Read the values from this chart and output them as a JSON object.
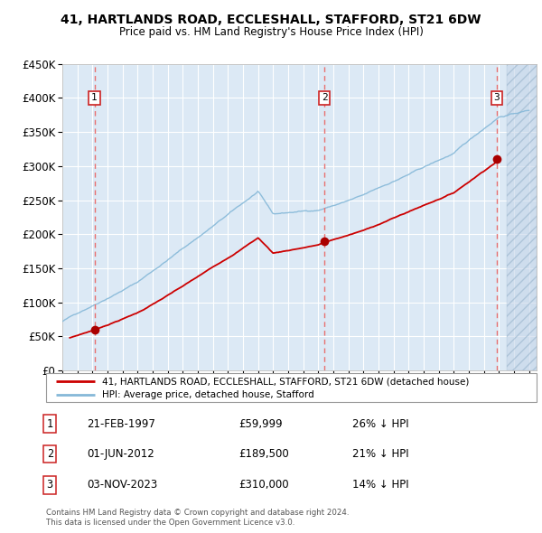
{
  "title": "41, HARTLANDS ROAD, ECCLESHALL, STAFFORD, ST21 6DW",
  "subtitle": "Price paid vs. HM Land Registry's House Price Index (HPI)",
  "footer1": "Contains HM Land Registry data © Crown copyright and database right 2024.",
  "footer2": "This data is licensed under the Open Government Licence v3.0.",
  "legend_line1": "41, HARTLANDS ROAD, ECCLESHALL, STAFFORD, ST21 6DW (detached house)",
  "legend_line2": "HPI: Average price, detached house, Stafford",
  "sales": [
    {
      "num": 1,
      "date": "21-FEB-1997",
      "price": 59999,
      "year": 1997.13,
      "hpi_pct": "26% ↓ HPI"
    },
    {
      "num": 2,
      "date": "01-JUN-2012",
      "price": 189500,
      "year": 2012.42,
      "hpi_pct": "21% ↓ HPI"
    },
    {
      "num": 3,
      "date": "03-NOV-2023",
      "price": 310000,
      "year": 2023.84,
      "hpi_pct": "14% ↓ HPI"
    }
  ],
  "xlim": [
    1995.0,
    2026.5
  ],
  "ylim": [
    0,
    450000
  ],
  "yticks": [
    0,
    50000,
    100000,
    150000,
    200000,
    250000,
    300000,
    350000,
    400000,
    450000
  ],
  "ytick_labels": [
    "£0",
    "£50K",
    "£100K",
    "£150K",
    "£200K",
    "£250K",
    "£300K",
    "£350K",
    "£400K",
    "£450K"
  ],
  "xticks": [
    1995,
    1996,
    1997,
    1998,
    1999,
    2000,
    2001,
    2002,
    2003,
    2004,
    2005,
    2006,
    2007,
    2008,
    2009,
    2010,
    2011,
    2012,
    2013,
    2014,
    2015,
    2016,
    2017,
    2018,
    2019,
    2020,
    2021,
    2022,
    2023,
    2024,
    2025,
    2026
  ],
  "bg_color": "#dce9f5",
  "grid_color": "#ffffff",
  "hpi_line_color": "#85b8d8",
  "price_line_color": "#cc0000",
  "sale_marker_color": "#aa0000",
  "dashed_line_color": "#e87070",
  "hatch_start": 2024.5
}
